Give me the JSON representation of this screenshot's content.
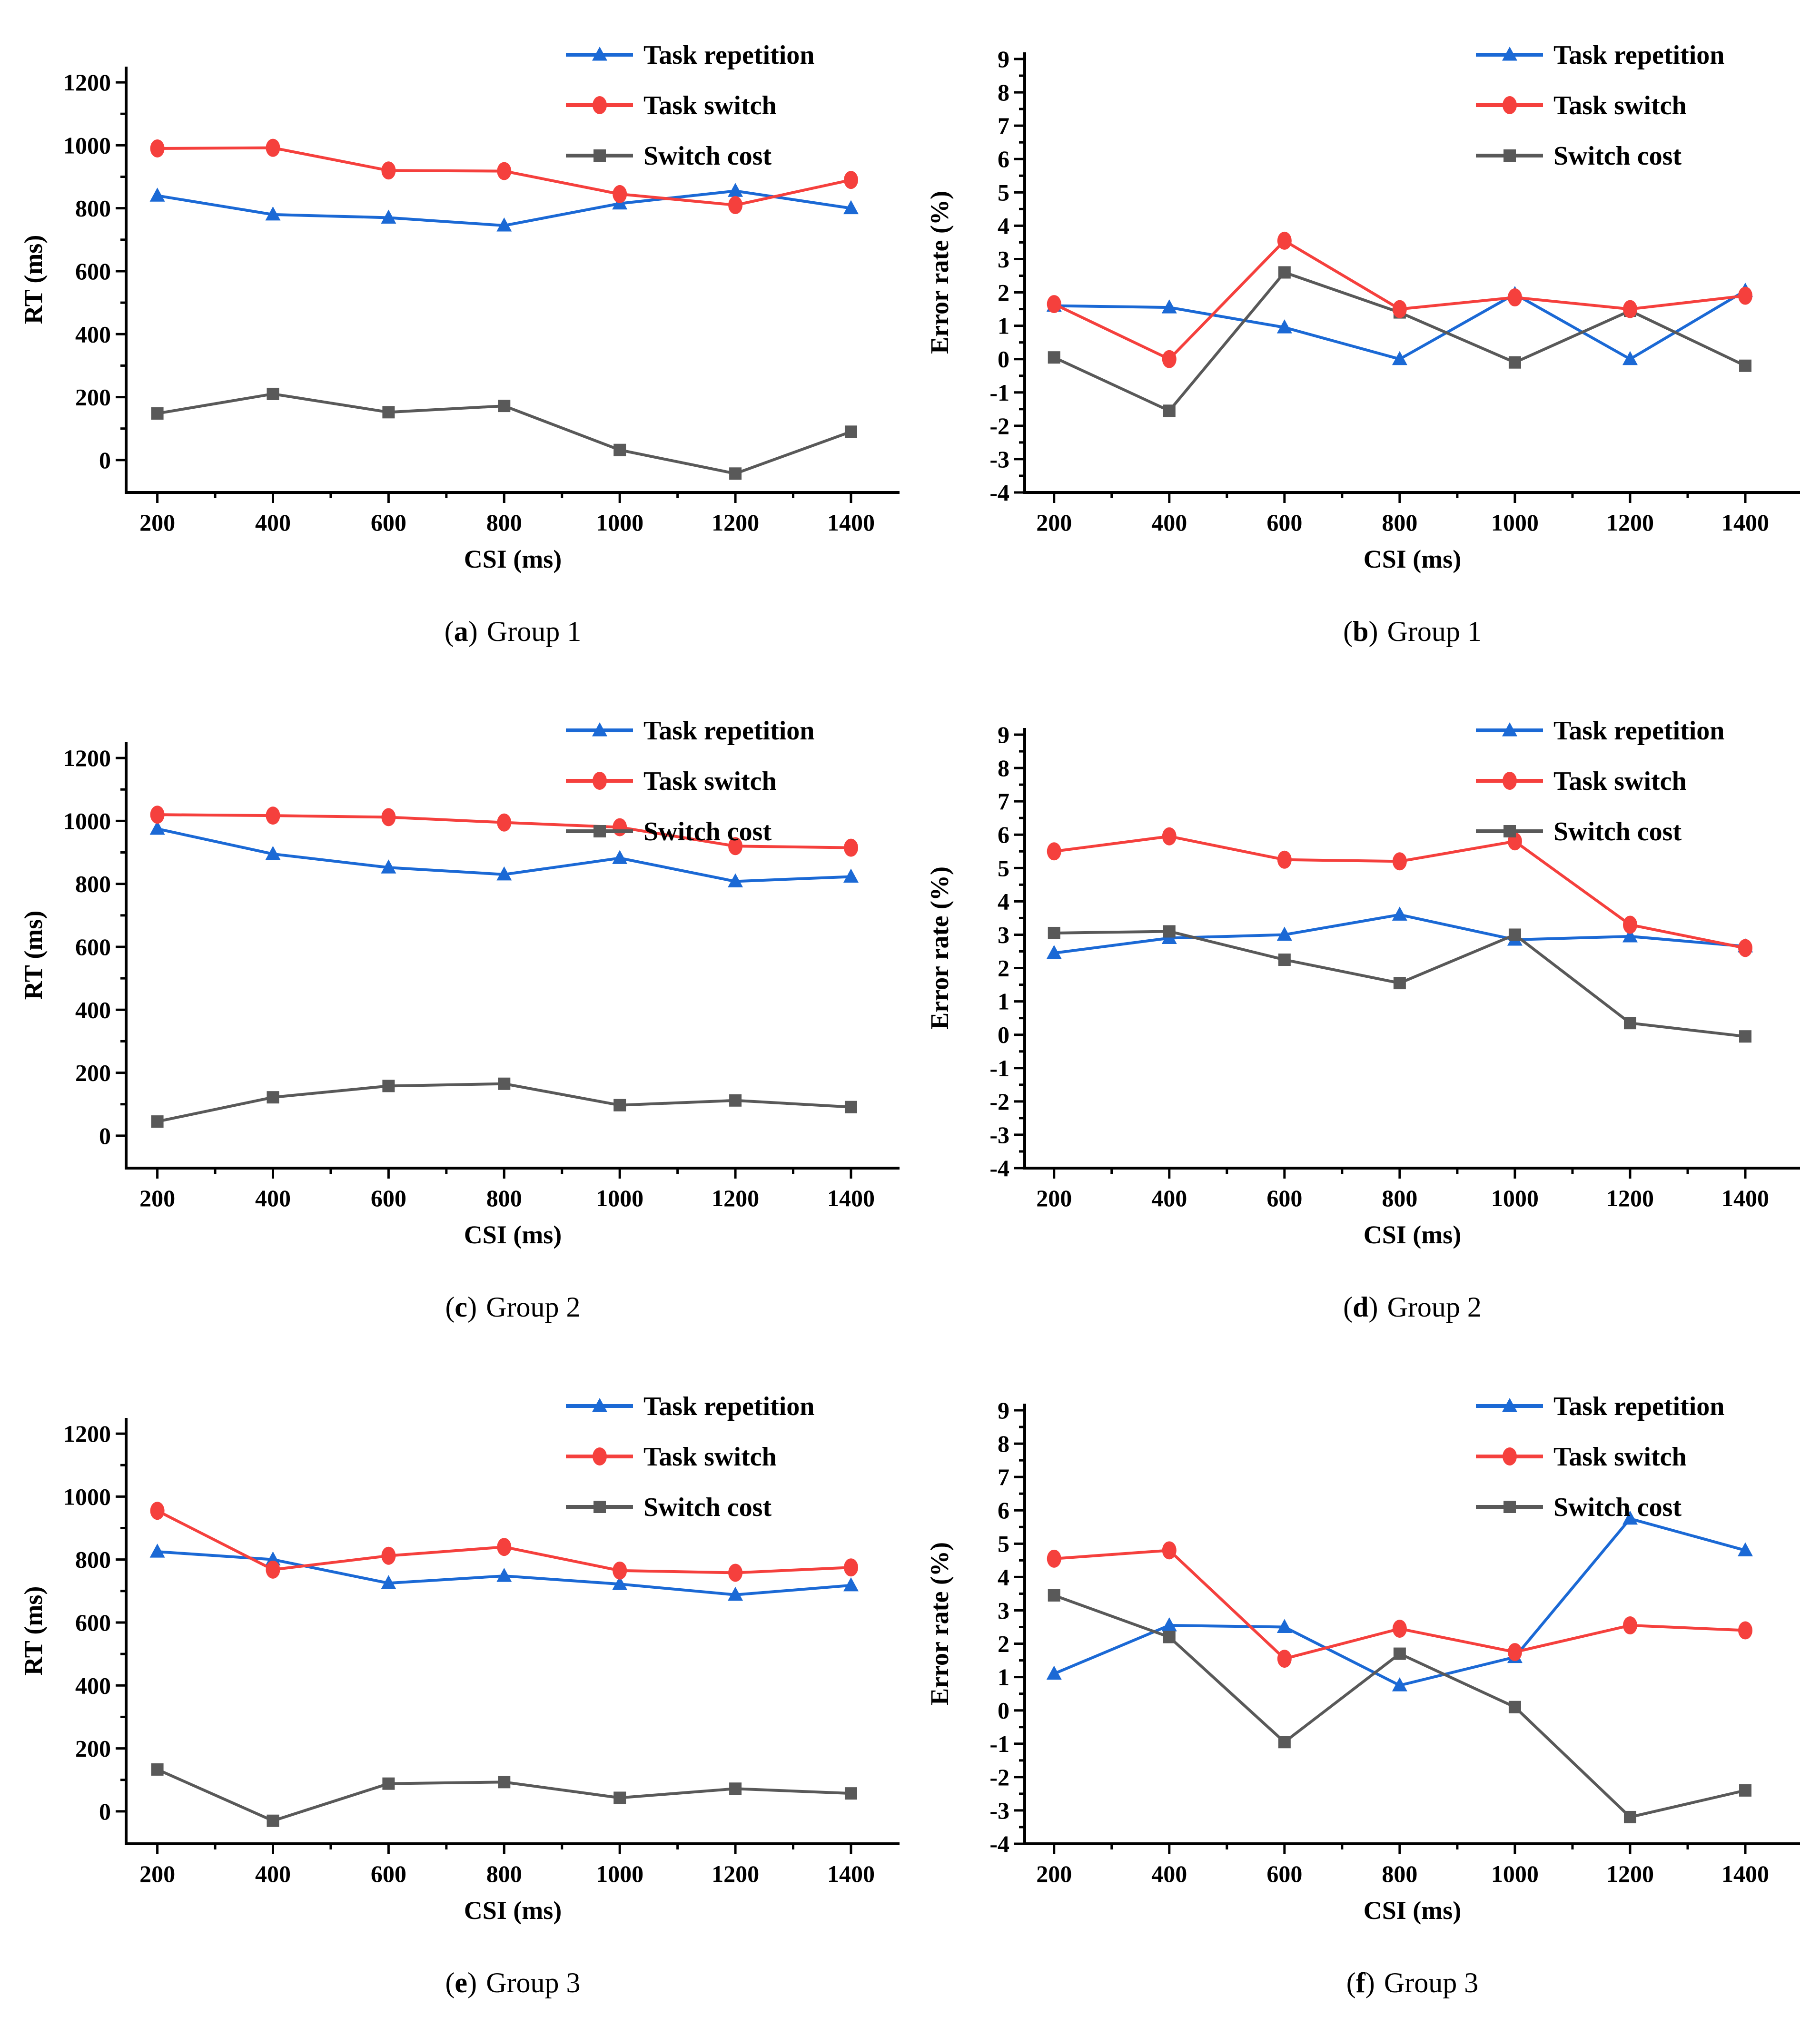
{
  "figure": {
    "background": "#ffffff",
    "axis_color": "#000000",
    "legend": {
      "position": "top-right",
      "items": [
        {
          "label": "Task repetition",
          "color": "#1b69d5",
          "marker": "triangle"
        },
        {
          "label": "Task switch",
          "color": "#f5403d",
          "marker": "circle"
        },
        {
          "label": "Switch cost",
          "color": "#595959",
          "marker": "square"
        }
      ]
    }
  },
  "chart_data": [
    {
      "id": "a",
      "type": "line",
      "caption": {
        "open": "(",
        "letter": "a",
        "close": ")",
        "label": "Group 1"
      },
      "xlabel": "CSI (ms)",
      "ylabel": "RT (ms)",
      "x": [
        200,
        400,
        600,
        800,
        1000,
        1200,
        1400
      ],
      "series": [
        {
          "name": "Task repetition",
          "values": [
            840,
            780,
            770,
            745,
            815,
            855,
            800
          ]
        },
        {
          "name": "Task switch",
          "values": [
            990,
            992,
            920,
            918,
            845,
            810,
            890
          ]
        },
        {
          "name": "Switch cost",
          "values": [
            148,
            210,
            152,
            172,
            32,
            -43,
            90
          ]
        }
      ],
      "xlim": [
        146,
        1484
      ],
      "ylim": [
        -103,
        1250
      ],
      "xticks": [
        200,
        400,
        600,
        800,
        1000,
        1200,
        1400
      ],
      "xminor": [
        300,
        500,
        700,
        900,
        1100,
        1300
      ],
      "yticks": [
        0,
        200,
        400,
        600,
        800,
        1000,
        1200
      ],
      "yminor": [
        100,
        300,
        500,
        700,
        900,
        1100
      ],
      "grid": false
    },
    {
      "id": "b",
      "type": "line",
      "caption": {
        "open": "(",
        "letter": "b",
        "close": ")",
        "label": "Group 1"
      },
      "xlabel": "CSI (ms)",
      "ylabel": "Error rate (%)",
      "x": [
        200,
        400,
        600,
        800,
        1000,
        1200,
        1400
      ],
      "series": [
        {
          "name": "Task repetition",
          "values": [
            1.6,
            1.55,
            0.95,
            0.0,
            1.95,
            0.0,
            2.05
          ]
        },
        {
          "name": "Task switch",
          "values": [
            1.65,
            0.0,
            3.55,
            1.5,
            1.85,
            1.5,
            1.9
          ]
        },
        {
          "name": "Switch cost",
          "values": [
            0.05,
            -1.55,
            2.6,
            1.4,
            -0.1,
            1.45,
            -0.2
          ]
        }
      ],
      "xlim": [
        149,
        1495
      ],
      "ylim": [
        -4,
        9.2
      ],
      "xticks": [
        200,
        400,
        600,
        800,
        1000,
        1200,
        1400
      ],
      "xminor": [
        300,
        500,
        700,
        900,
        1100,
        1300
      ],
      "yticks": [
        -4,
        -3,
        -2,
        -1,
        0,
        1,
        2,
        3,
        4,
        5,
        6,
        7,
        8,
        9
      ],
      "yminor": [
        -3.5,
        -2.5,
        -1.5,
        -0.5,
        0.5,
        1.5,
        2.5,
        3.5,
        4.5,
        5.5,
        6.5,
        7.5,
        8.5
      ],
      "grid": false
    },
    {
      "id": "c",
      "type": "line",
      "caption": {
        "open": "(",
        "letter": "c",
        "close": ")",
        "label": "Group 2"
      },
      "xlabel": "CSI (ms)",
      "ylabel": "RT (ms)",
      "x": [
        200,
        400,
        600,
        800,
        1000,
        1200,
        1400
      ],
      "series": [
        {
          "name": "Task repetition",
          "values": [
            975,
            895,
            852,
            830,
            882,
            808,
            823
          ]
        },
        {
          "name": "Task switch",
          "values": [
            1020,
            1017,
            1012,
            995,
            980,
            920,
            915
          ]
        },
        {
          "name": "Switch cost",
          "values": [
            45,
            122,
            158,
            165,
            97,
            112,
            91
          ]
        }
      ],
      "xlim": [
        146,
        1484
      ],
      "ylim": [
        -103,
        1250
      ],
      "xticks": [
        200,
        400,
        600,
        800,
        1000,
        1200,
        1400
      ],
      "xminor": [
        300,
        500,
        700,
        900,
        1100,
        1300
      ],
      "yticks": [
        0,
        200,
        400,
        600,
        800,
        1000,
        1200
      ],
      "yminor": [
        100,
        300,
        500,
        700,
        900,
        1100
      ],
      "grid": false
    },
    {
      "id": "d",
      "type": "line",
      "caption": {
        "open": "(",
        "letter": "d",
        "close": ")",
        "label": "Group 2"
      },
      "xlabel": "CSI (ms)",
      "ylabel": "Error rate (%)",
      "x": [
        200,
        400,
        600,
        800,
        1000,
        1200,
        1400
      ],
      "series": [
        {
          "name": "Task repetition",
          "values": [
            2.45,
            2.9,
            3.0,
            3.6,
            2.85,
            2.95,
            2.65
          ]
        },
        {
          "name": "Task switch",
          "values": [
            5.5,
            5.95,
            5.25,
            5.2,
            5.8,
            3.3,
            2.6
          ]
        },
        {
          "name": "Switch cost",
          "values": [
            3.05,
            3.1,
            2.25,
            1.55,
            3.0,
            0.35,
            -0.05
          ]
        }
      ],
      "xlim": [
        149,
        1495
      ],
      "ylim": [
        -4,
        9.2
      ],
      "xticks": [
        200,
        400,
        600,
        800,
        1000,
        1200,
        1400
      ],
      "xminor": [
        300,
        500,
        700,
        900,
        1100,
        1300
      ],
      "yticks": [
        -4,
        -3,
        -2,
        -1,
        0,
        1,
        2,
        3,
        4,
        5,
        6,
        7,
        8,
        9
      ],
      "yminor": [
        -3.5,
        -2.5,
        -1.5,
        -0.5,
        0.5,
        1.5,
        2.5,
        3.5,
        4.5,
        5.5,
        6.5,
        7.5,
        8.5
      ],
      "grid": false
    },
    {
      "id": "e",
      "type": "line",
      "caption": {
        "open": "(",
        "letter": "e",
        "close": ")",
        "label": "Group 3"
      },
      "xlabel": "CSI (ms)",
      "ylabel": "RT (ms)",
      "x": [
        200,
        400,
        600,
        800,
        1000,
        1200,
        1400
      ],
      "series": [
        {
          "name": "Task repetition",
          "values": [
            825,
            800,
            725,
            748,
            722,
            688,
            718
          ]
        },
        {
          "name": "Task switch",
          "values": [
            955,
            768,
            812,
            840,
            765,
            758,
            775
          ]
        },
        {
          "name": "Switch cost",
          "values": [
            133,
            -30,
            88,
            93,
            43,
            72,
            57
          ]
        }
      ],
      "xlim": [
        146,
        1484
      ],
      "ylim": [
        -103,
        1250
      ],
      "xticks": [
        200,
        400,
        600,
        800,
        1000,
        1200,
        1400
      ],
      "xminor": [
        300,
        500,
        700,
        900,
        1100,
        1300
      ],
      "yticks": [
        0,
        200,
        400,
        600,
        800,
        1000,
        1200
      ],
      "yminor": [
        100,
        300,
        500,
        700,
        900,
        1100
      ],
      "grid": false
    },
    {
      "id": "f",
      "type": "line",
      "caption": {
        "open": "(",
        "letter": "f",
        "close": ")",
        "label": "Group 3"
      },
      "xlabel": "CSI (ms)",
      "ylabel": "Error rate (%)",
      "x": [
        200,
        400,
        600,
        800,
        1000,
        1200,
        1400
      ],
      "series": [
        {
          "name": "Task repetition",
          "values": [
            1.1,
            2.55,
            2.5,
            0.75,
            1.6,
            5.75,
            4.8
          ]
        },
        {
          "name": "Task switch",
          "values": [
            4.55,
            4.8,
            1.55,
            2.45,
            1.75,
            2.55,
            2.4
          ]
        },
        {
          "name": "Switch cost",
          "values": [
            3.45,
            2.2,
            -0.95,
            1.7,
            0.1,
            -3.2,
            -2.4
          ]
        }
      ],
      "xlim": [
        149,
        1495
      ],
      "ylim": [
        -4,
        9.2
      ],
      "xticks": [
        200,
        400,
        600,
        800,
        1000,
        1200,
        1400
      ],
      "xminor": [
        300,
        500,
        700,
        900,
        1100,
        1300
      ],
      "yticks": [
        -4,
        -3,
        -2,
        -1,
        0,
        1,
        2,
        3,
        4,
        5,
        6,
        7,
        8,
        9
      ],
      "yminor": [
        -3.5,
        -2.5,
        -1.5,
        -0.5,
        0.5,
        1.5,
        2.5,
        3.5,
        4.5,
        5.5,
        6.5,
        7.5,
        8.5
      ],
      "grid": false
    }
  ]
}
